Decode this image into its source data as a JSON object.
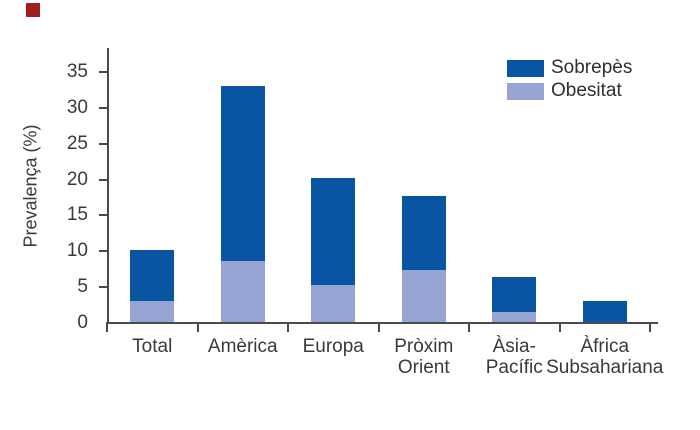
{
  "figure": {
    "background": "#ffffff",
    "corner_marker_color": "#a11d20",
    "text_color": "#3a3a3a",
    "axis_color": "#4a4a4a"
  },
  "chart_data": {
    "type": "bar",
    "stacked": true,
    "title": "",
    "ylabel": "Prevalença (%)",
    "xlabel": "",
    "categories": [
      "Total",
      "Amèrica",
      "Europa",
      "Pròxim Orient",
      "Àsia-Pacífic",
      "Àfrica Subsahariana"
    ],
    "category_label_lines": [
      [
        "Total"
      ],
      [
        "Amèrica"
      ],
      [
        "Europa"
      ],
      [
        "Pròxim",
        "Orient"
      ],
      [
        "Àsia-",
        "Pacífic"
      ],
      [
        "Àfrica",
        "Subsahariana"
      ]
    ],
    "series": [
      {
        "name": "Obesitat",
        "color": "#97a5d4",
        "values": [
          2.9,
          8.5,
          5.2,
          7.3,
          1.4,
          0
        ]
      },
      {
        "name": "Sobrepès",
        "color": "#0a55a3",
        "values": [
          7.1,
          24.4,
          14.9,
          10.3,
          4.9,
          2.9
        ]
      }
    ],
    "stack_totals": [
      10.0,
      32.9,
      20.1,
      17.6,
      6.3,
      2.9
    ],
    "ylim": [
      0,
      38.2
    ],
    "yticks": [
      0,
      5,
      10,
      15,
      20,
      25,
      30,
      35
    ],
    "grid": false,
    "legend": {
      "position": "top-right",
      "items": [
        {
          "label": "Sobrepès",
          "color": "#0a55a3"
        },
        {
          "label": "Obesitat",
          "color": "#97a5d4"
        }
      ]
    }
  }
}
